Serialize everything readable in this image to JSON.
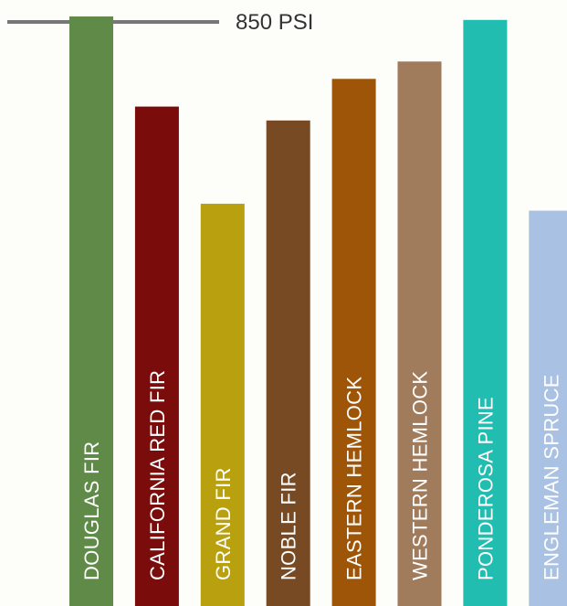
{
  "chart_data": {
    "type": "bar",
    "categories": [
      "DOUGLAS FIR",
      "CALIFORNIA RED FIR",
      "GRAND FIR",
      "NOBLE FIR",
      "EASTERN HEMLOCK",
      "WESTERN HEMLOCK",
      "PONDEROSA PINE",
      "ENGLEMAN SPRUCE"
    ],
    "values": [
      850,
      720,
      580,
      700,
      760,
      785,
      845,
      570
    ],
    "colors": [
      "#5f8a48",
      "#7a0c0c",
      "#b8a00f",
      "#774a23",
      "#9e5508",
      "#a07b5c",
      "#21bdb1",
      "#a9c1e2"
    ],
    "reference_line": {
      "value": 850,
      "label": "850 PSI",
      "color": "#777777"
    },
    "ylim": [
      0,
      850
    ],
    "title": "",
    "xlabel": "",
    "ylabel": "",
    "grid": false,
    "legend": "none"
  }
}
